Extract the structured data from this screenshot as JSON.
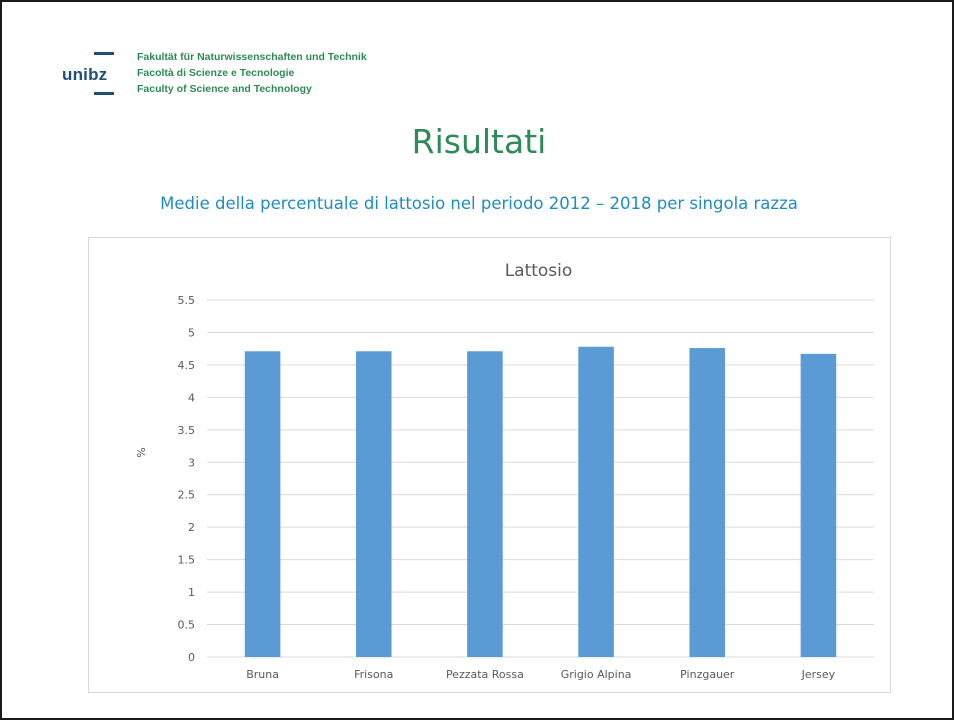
{
  "logo": {
    "text": "unibz"
  },
  "faculty_lines": [
    "Fakultät für Naturwissenschaften und Technik",
    "Facoltà di Scienze e Tecnologie",
    "Faculty of Science and Technology"
  ],
  "title": "Risultati",
  "subtitle": "Medie della percentuale di lattosio nel periodo 2012 – 2018 per singola razza",
  "colors": {
    "bar": "#5b9bd5",
    "title": "#2e8b57",
    "subtitle": "#1f8cc0",
    "logo": "#1f4e79"
  },
  "chart_data": {
    "type": "bar",
    "title": "Lattosio",
    "xlabel": "",
    "ylabel": "%",
    "categories": [
      "Bruna",
      "Frisona",
      "Pezzata Rossa",
      "Grigio Alpina",
      "Pinzgauer",
      "Jersey"
    ],
    "values": [
      4.71,
      4.71,
      4.71,
      4.78,
      4.76,
      4.67
    ],
    "ylim": [
      0,
      5.5
    ],
    "yticks": [
      "0",
      "0.5",
      "1",
      "1.5",
      "2",
      "2.5",
      "3",
      "3.5",
      "4",
      "4.5",
      "5",
      "5.5"
    ],
    "grid": true,
    "legend": "none"
  }
}
